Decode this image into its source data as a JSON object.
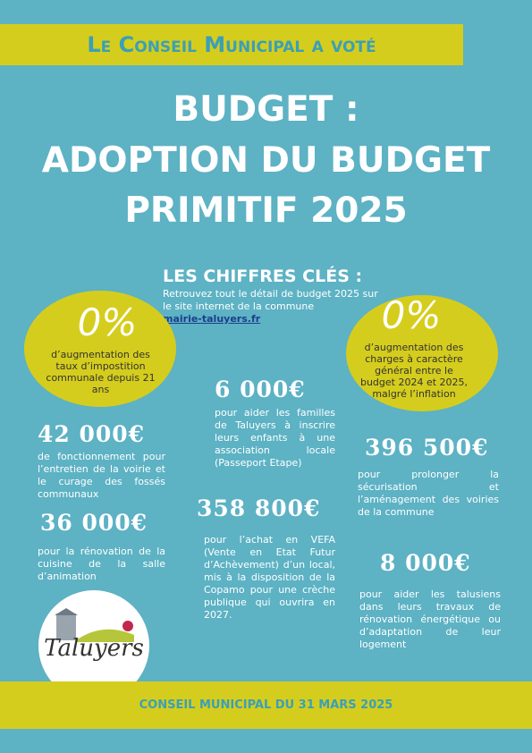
{
  "banner": "Le Conseil Municipal a voté",
  "title": [
    "BUDGET :",
    "ADOPTION DU BUDGET",
    "PRIMITIF 2025"
  ],
  "key_figures": {
    "heading": "LES CHIFFRES CLÉS :",
    "intro": "Retrouvez tout le détail de budget 2025 sur le site internet de la commune",
    "link": "mairie-taluyers.fr"
  },
  "highlights": [
    {
      "amount": "0%",
      "text": "d’augmentation des taux d’impostition communale depuis 21 ans"
    },
    {
      "amount": "0%",
      "text": "d’augmentation des charges à caractère général entre le budget 2024 et 2025, malgré l’inflation"
    }
  ],
  "figures": [
    {
      "amount": "6 000€",
      "text": "pour aider les familles de Taluyers à inscrire leurs enfants à une association locale (Passeport Etape)"
    },
    {
      "amount": "42 000€",
      "text": "de fonctionnement pour l’entretien de la voirie et le curage des fossés communaux"
    },
    {
      "amount": "396 500€",
      "text": "pour prolonger la sécurisation et l’aménagement des voiries de la commune"
    },
    {
      "amount": "36 000€",
      "text": "pour la rénovation de la cuisine de la salle d’animation"
    },
    {
      "amount": "358 800€",
      "text": "pour l’achat en VEFA (Vente en Etat Futur d’Achèvement) d’un local, mis à la disposition de la Copamo pour une crèche publique qui ouvrira en 2027."
    },
    {
      "amount": "8 000€",
      "text": "pour aider les talusiens dans leurs travaux de rénovation énergétique ou d’adaptation de leur logement"
    }
  ],
  "logo": "Taluyers",
  "footer": "CONSEIL MUNICIPAL DU 31 MARS 2025"
}
